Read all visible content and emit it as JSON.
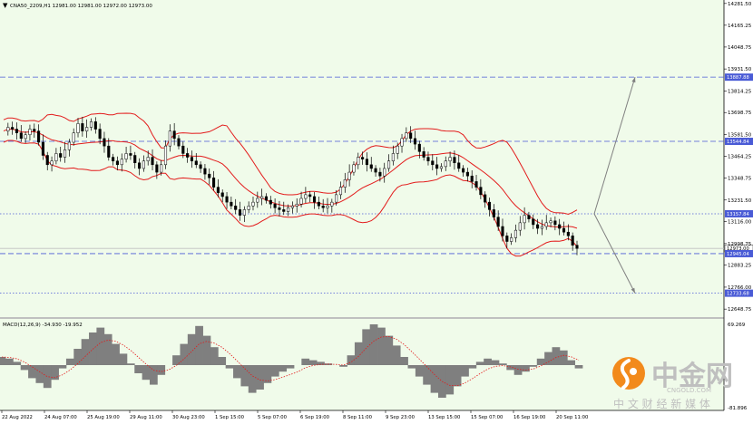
{
  "header": {
    "symbol_label": "CNA50_2209,H1  12981.00 12981.00 12972.00 12973.00"
  },
  "macd": {
    "label": "MACD(12,26,9) -34.930 -19.952",
    "scale_top": "69.269",
    "scale_bottom": "-81.896"
  },
  "watermark": {
    "brand_cn": "中金网",
    "brand_en": "CNGOLD.COM",
    "slogan": "中 文 财 经 新 媒 体",
    "accent_color": "#f28a1c",
    "brand_color": "#bfbfbf"
  },
  "colors": {
    "bg_plot": "#f0fbea",
    "candle": "#000000",
    "band": "#e31b1b",
    "dash_line": "#4a5bd6",
    "arrow": "#808080",
    "macd_hist": "#7f7f7f",
    "macd_signal": "#e31b1b"
  },
  "chart_data": {
    "type": "candlestick",
    "price_axis": {
      "range": [
        12606,
        14300
      ],
      "ticks": [
        14281.5,
        14165.25,
        14048.75,
        13931.5,
        13814.25,
        13698.75,
        13581.5,
        13464.25,
        13348.75,
        13231.5,
        13116,
        12998.75,
        12883.25,
        12766,
        12648.75
      ]
    },
    "time_axis": {
      "labels": [
        "22 Aug 2022",
        "24 Aug 07:00",
        "25 Aug 19:00",
        "29 Aug 11:00",
        "30 Aug 23:00",
        "1 Sep 15:00",
        "5 Sep 07:00",
        "6 Sep 19:00",
        "8 Sep 11:00",
        "9 Sep 23:00",
        "13 Sep 15:00",
        "15 Sep 07:00",
        "16 Sep 19:00",
        "20 Sep 11:00"
      ]
    },
    "levels": [
      {
        "value": 13887.88,
        "label": "13887.88",
        "style": "dashed"
      },
      {
        "value": 13544.84,
        "label": "13544.84",
        "style": "dashed"
      },
      {
        "value": 13157.84,
        "label": "13157.84",
        "style": "dotted"
      },
      {
        "value": 12973.0,
        "label": "12973.00",
        "style": "current"
      },
      {
        "value": 12945.04,
        "label": "12945.04",
        "style": "dashed"
      },
      {
        "value": 12733.68,
        "label": "12733.68",
        "style": "dotted"
      }
    ],
    "close_series": [
      13600,
      13620,
      13610,
      13590,
      13560,
      13580,
      13610,
      13600,
      13540,
      13470,
      13420,
      13440,
      13480,
      13460,
      13500,
      13540,
      13590,
      13640,
      13600,
      13620,
      13650,
      13610,
      13560,
      13520,
      13460,
      13440,
      13420,
      13450,
      13480,
      13470,
      13430,
      13400,
      13440,
      13460,
      13420,
      13380,
      13420,
      13520,
      13600,
      13560,
      13520,
      13480,
      13460,
      13440,
      13420,
      13400,
      13370,
      13350,
      13300,
      13270,
      13250,
      13220,
      13200,
      13180,
      13150,
      13180,
      13200,
      13220,
      13240,
      13250,
      13230,
      13210,
      13190,
      13180,
      13170,
      13190,
      13200,
      13210,
      13240,
      13260,
      13250,
      13220,
      13200,
      13190,
      13200,
      13220,
      13260,
      13300,
      13340,
      13380,
      13420,
      13460,
      13450,
      13420,
      13400,
      13380,
      13360,
      13400,
      13440,
      13480,
      13520,
      13560,
      13590,
      13560,
      13530,
      13490,
      13460,
      13440,
      13420,
      13400,
      13410,
      13440,
      13460,
      13430,
      13400,
      13380,
      13360,
      13330,
      13300,
      13260,
      13220,
      13180,
      13140,
      13090,
      13040,
      13010,
      13030,
      13070,
      13110,
      13150,
      13130,
      13100,
      13080,
      13090,
      13110,
      13120,
      13100,
      13080,
      13060,
      13040,
      12990,
      12973
    ],
    "macd_series": [
      10,
      8,
      4,
      -6,
      -16,
      -22,
      -28,
      -18,
      -4,
      8,
      20,
      32,
      40,
      46,
      38,
      26,
      14,
      2,
      -10,
      -18,
      -24,
      -12,
      0,
      12,
      26,
      38,
      48,
      36,
      22,
      10,
      -4,
      -16,
      -26,
      -34,
      -30,
      -22,
      -14,
      -8,
      -4,
      0,
      8,
      6,
      4,
      2,
      0,
      -2,
      12,
      28,
      44,
      50,
      46,
      36,
      24,
      10,
      -4,
      -14,
      -24,
      -34,
      -40,
      -36,
      -26,
      -14,
      -4,
      4,
      8,
      6,
      2,
      -6,
      -12,
      -8,
      -2,
      8,
      16,
      22,
      18,
      6,
      -4
    ]
  }
}
